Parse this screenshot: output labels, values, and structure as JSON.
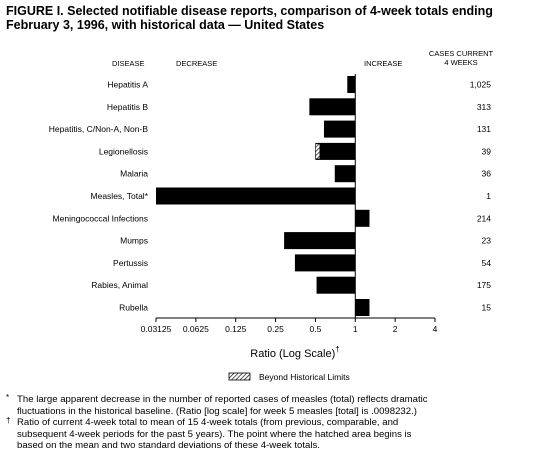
{
  "title": {
    "line1": "FIGURE I. Selected notifiable disease reports, comparison of 4-week totals ending",
    "line2": "February 3, 1996, with historical data — United States"
  },
  "headers": {
    "disease": "DISEASE",
    "decrease": "DECREASE",
    "increase": "INCREASE",
    "cases_line1": "CASES CURRENT",
    "cases_line2": "4 WEEKS"
  },
  "legend": {
    "label": "Beyond Historical Limits"
  },
  "footnotes": [
    {
      "mark": "*",
      "lines": [
        "The large apparent decrease in the number of reported cases of measles (total) reflects dramatic",
        "fluctuations in the historical baseline. (Ratio [log scale] for week 5 measles [total] is .0098232.)"
      ]
    },
    {
      "mark": "†",
      "lines": [
        "Ratio of current 4-week total to mean of 15 4-week totals (from previous, comparable, and",
        "subsequent 4-week periods for the past 5 years). The point where the hatched area begins is",
        "based on the mean and two standard deviations of these 4-week totals."
      ]
    }
  ],
  "chart_data": {
    "type": "bar",
    "orientation": "horizontal",
    "scale": "log2",
    "reference_value": 1,
    "xlabel": "Ratio (Log Scale)",
    "xlabel_mark": "†",
    "xlim": [
      0.03125,
      4
    ],
    "xticks": [
      {
        "value": 0.03125,
        "label": "0.03125"
      },
      {
        "value": 0.0625,
        "label": "0.0625"
      },
      {
        "value": 0.125,
        "label": "0.125"
      },
      {
        "value": 0.25,
        "label": "0.25"
      },
      {
        "value": 0.5,
        "label": "0.5"
      },
      {
        "value": 1,
        "label": "1"
      },
      {
        "value": 2,
        "label": "2"
      },
      {
        "value": 4,
        "label": "4"
      }
    ],
    "categories": [
      "Hepatitis A",
      "Hepatitis B",
      "Hepatitis, C/Non-A, Non-B",
      "Legionellosis",
      "Malaria",
      "Measles, Total*",
      "Meningococcal Infections",
      "Mumps",
      "Pertussis",
      "Rabies, Animal",
      "Rubella"
    ],
    "values": [
      0.87,
      0.45,
      0.58,
      0.5,
      0.7,
      0.0098232,
      1.28,
      0.29,
      0.35,
      0.51,
      1.28
    ],
    "beyond_limits_start": [
      null,
      null,
      null,
      0.54,
      null,
      null,
      null,
      null,
      null,
      null,
      null
    ],
    "cases": [
      "1,025",
      "313",
      "131",
      "39",
      "36",
      "1",
      "214",
      "23",
      "54",
      "175",
      "15"
    ]
  }
}
